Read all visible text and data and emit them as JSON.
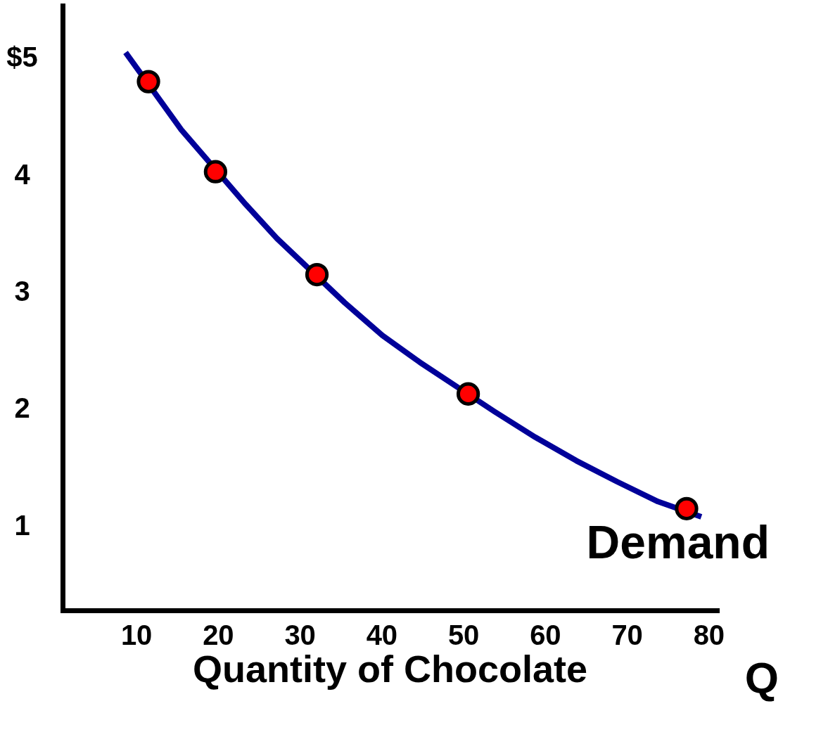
{
  "chart_data": {
    "type": "line",
    "xlabel": "Quantity of Chocolate",
    "xlim": [
      1,
      81
    ],
    "xticks": [
      10,
      20,
      30,
      40,
      50,
      60,
      70,
      80
    ],
    "ylim": [
      0.28,
      5.45
    ],
    "yticks": [
      1,
      2,
      3,
      4,
      {
        "value": 5,
        "label": "$5"
      }
    ],
    "grid": false,
    "series": [
      {
        "color": "#000099",
        "marker": "none",
        "x": [
          8.7,
          15.5,
          23.4,
          27.2,
          35.5,
          40.1,
          44.7,
          53.8,
          58.8,
          63.8,
          68.8,
          73.8,
          79.1
        ],
        "values": [
          5.05,
          4.39,
          3.75,
          3.46,
          2.91,
          2.63,
          2.4,
          1.98,
          1.76,
          1.56,
          1.38,
          1.21,
          1.08
        ]
      },
      {
        "type": "scatter",
        "color": "#ff0000",
        "marker": "circle",
        "x": [
          11.5,
          19.7,
          32.1,
          50.6,
          77.3
        ],
        "values": [
          4.8,
          4.03,
          3.15,
          2.13,
          1.15
        ]
      }
    ],
    "annotations": [
      "Demand",
      "Q"
    ]
  }
}
